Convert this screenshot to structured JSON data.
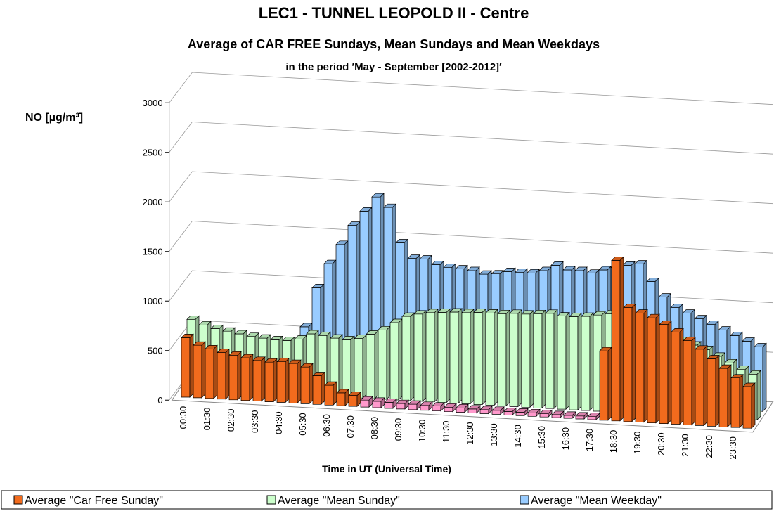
{
  "chart_data": {
    "type": "bar3d",
    "title": "LEC1 - TUNNEL LEOPOLD II - Centre",
    "subtitle": "Average of CAR FREE Sundays, Mean Sundays and Mean Weekdays",
    "note": "in the period ′May - September [2002-2012]′",
    "y_label": "NO  [µg/m³]",
    "x_label": "Time in UT (Universal Time)",
    "ylim": [
      0,
      3000
    ],
    "yticks": [
      0,
      500,
      1000,
      1500,
      2000,
      2500,
      3000
    ],
    "grid": true,
    "legend": "bottom",
    "categories": [
      "00:30",
      null,
      "01:30",
      null,
      "02:30",
      null,
      "03:30",
      null,
      "04:30",
      null,
      "05:30",
      null,
      "06:30",
      null,
      "07:30",
      null,
      "08:30",
      null,
      "09:30",
      null,
      "10:30",
      null,
      "11:30",
      null,
      "12:30",
      null,
      "13:30",
      null,
      "14:30",
      null,
      "15:30",
      null,
      "16:30",
      null,
      "17:30",
      null,
      "18:30",
      null,
      "19:30",
      null,
      "20:30",
      null,
      "21:30",
      null,
      "22:30",
      null,
      "23:30",
      null
    ],
    "series": [
      {
        "name": "Average \"Car Free Sunday\"",
        "color": "#f26b1d",
        "colors": [
          "#f26b1d",
          "#f26b1d",
          "#f26b1d",
          "#f26b1d",
          "#f26b1d",
          "#f26b1d",
          "#f26b1d",
          "#f26b1d",
          "#f26b1d",
          "#f26b1d",
          "#f26b1d",
          "#f26b1d",
          "#f26b1d",
          "#f26b1d",
          "#f26b1d",
          "#ff99cc",
          "#ff99cc",
          "#ff99cc",
          "#ff99cc",
          "#ff99cc",
          "#ff99cc",
          "#ff99cc",
          "#ff99cc",
          "#ff99cc",
          "#ff99cc",
          "#ff99cc",
          "#ff99cc",
          "#ff99cc",
          "#ff99cc",
          "#ff99cc",
          "#ff99cc",
          "#ff99cc",
          "#ff99cc",
          "#ff99cc",
          "#ff99cc",
          "#f26b1d",
          "#f26b1d",
          "#f26b1d",
          "#f26b1d",
          "#f26b1d",
          "#f26b1d",
          "#f26b1d",
          "#f26b1d",
          "#f26b1d",
          "#f26b1d",
          "#f26b1d",
          "#f26b1d",
          "#f26b1d"
        ],
        "values": [
          600,
          530,
          500,
          470,
          450,
          430,
          410,
          400,
          410,
          400,
          370,
          290,
          200,
          130,
          110,
          70,
          65,
          60,
          55,
          55,
          50,
          50,
          45,
          45,
          40,
          40,
          40,
          35,
          35,
          35,
          35,
          30,
          30,
          30,
          30,
          700,
          1620,
          1150,
          1100,
          1060,
          1000,
          930,
          850,
          770,
          680,
          590,
          500,
          420
        ]
      },
      {
        "name": "Average \"Mean Sunday\"",
        "color": "#ccffcc",
        "values": [
          700,
          650,
          620,
          600,
          580,
          560,
          550,
          540,
          540,
          560,
          620,
          610,
          590,
          580,
          600,
          650,
          700,
          780,
          850,
          880,
          900,
          910,
          920,
          920,
          930,
          930,
          930,
          940,
          940,
          950,
          960,
          940,
          940,
          950,
          970,
          990,
          1000,
          950,
          880,
          850,
          800,
          760,
          720,
          680,
          620,
          560,
          500,
          460
        ]
      },
      {
        "name": "Average \"Mean Weekday\"",
        "color": "#99ccff",
        "values": [
          450,
          400,
          370,
          350,
          330,
          320,
          330,
          360,
          420,
          600,
          1000,
          1250,
          1450,
          1650,
          1800,
          1950,
          1850,
          1500,
          1350,
          1350,
          1300,
          1280,
          1270,
          1260,
          1230,
          1240,
          1270,
          1270,
          1270,
          1300,
          1360,
          1320,
          1320,
          1300,
          1340,
          1370,
          1400,
          1420,
          1250,
          1100,
          1000,
          950,
          900,
          850,
          800,
          750,
          700,
          650
        ]
      }
    ]
  }
}
